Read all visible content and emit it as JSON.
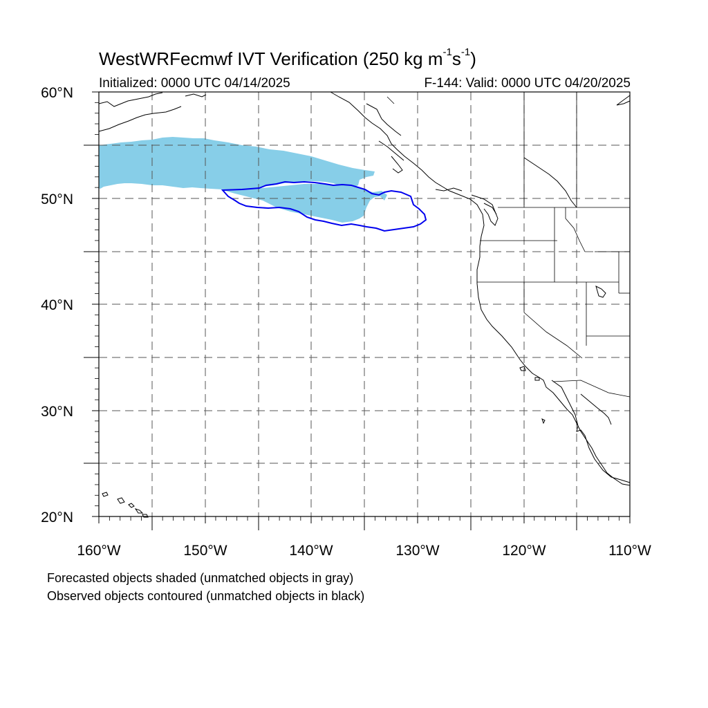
{
  "title": {
    "main": "WestWRFecmwf IVT Verification (250 kg m",
    "exp1": "-1",
    "mid": "s",
    "exp2": "-1",
    "close": ")"
  },
  "initialized": "Initialized: 0000 UTC 04/14/2025",
  "valid": "F-144: Valid: 0000 UTC 04/20/2025",
  "axes": {
    "lat_labels": [
      "60°N",
      "50°N",
      "40°N",
      "30°N",
      "20°N"
    ],
    "lon_labels": [
      "160°W",
      "150°W",
      "140°W",
      "130°W",
      "120°W",
      "110°W"
    ],
    "lat_range": [
      20,
      60
    ],
    "lon_range": [
      -160,
      -110
    ],
    "grid": "dashed every 5 degrees"
  },
  "notes": [
    "Forecasted objects shaded (unmatched objects in gray)",
    "Observed objects contoured (unmatched objects in black)"
  ],
  "colors": {
    "forecast_shading": "#87CEE8",
    "observed_contour": "#0000EE",
    "coastline": "#000000",
    "grid": "#555555"
  },
  "objects": {
    "forecast_object": {
      "lat_range": [
        47.5,
        55.5
      ],
      "lon_range": [
        -160,
        -133
      ]
    },
    "observed_object": {
      "lat_range": [
        46.6,
        51.6
      ],
      "lon_range": [
        -148.4,
        -128.8
      ]
    }
  }
}
